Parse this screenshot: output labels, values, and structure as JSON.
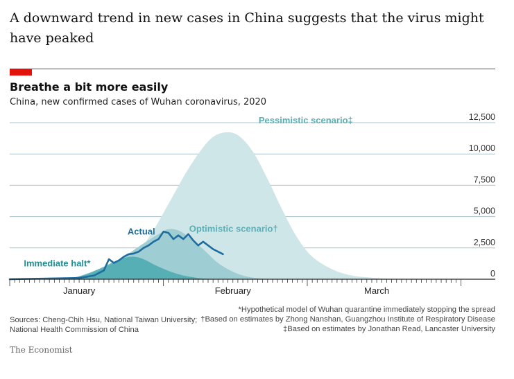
{
  "article": {
    "headline": "A downward trend in new cases in China suggests that the virus might have peaked"
  },
  "chart_data": {
    "type": "area",
    "title": "Breathe a bit more easily",
    "subtitle": "China, new confirmed cases of Wuhan coronavirus, 2020",
    "xlabel": "",
    "ylabel": "",
    "ylim": [
      0,
      12500
    ],
    "y_ticks": [
      {
        "value": 0,
        "label": "0"
      },
      {
        "value": 2500,
        "label": "2,500"
      },
      {
        "value": 5000,
        "label": "5,000"
      },
      {
        "value": 7500,
        "label": "7,500"
      },
      {
        "value": 10000,
        "label": "10,000"
      },
      {
        "value": 12500,
        "label": "12,500"
      }
    ],
    "x_axis": {
      "start": "2020-01-01",
      "end": "2020-03-31",
      "month_labels": [
        {
          "label": "January",
          "date": "2020-01-15"
        },
        {
          "label": "February",
          "date": "2020-02-15"
        },
        {
          "label": "March",
          "date": "2020-03-15"
        }
      ]
    },
    "grid": true,
    "colors": {
      "pessimistic": "#cfe6e8",
      "optimistic": "#9ecdd3",
      "immediate": "#4aa9b0",
      "actual": "#1e6d9e",
      "grid": "#a9c3cc",
      "accent": "#e3120b"
    },
    "series": [
      {
        "name": "Pessimistic scenario‡",
        "kind": "area",
        "x": [
          "2020-01-01",
          "2020-01-10",
          "2020-01-15",
          "2020-01-20",
          "2020-01-25",
          "2020-01-29",
          "2020-02-02",
          "2020-02-06",
          "2020-02-10",
          "2020-02-13",
          "2020-02-16",
          "2020-02-19",
          "2020-02-22",
          "2020-02-25",
          "2020-02-28",
          "2020-03-02",
          "2020-03-06",
          "2020-03-10",
          "2020-03-15",
          "2020-03-20"
        ],
        "y": [
          0,
          0,
          100,
          500,
          1500,
          3300,
          6000,
          8800,
          11000,
          11700,
          11500,
          10200,
          8000,
          5500,
          3300,
          1800,
          800,
          300,
          100,
          0
        ]
      },
      {
        "name": "Optimistic scenario†",
        "kind": "area",
        "x": [
          "2020-01-01",
          "2020-01-10",
          "2020-01-15",
          "2020-01-19",
          "2020-01-23",
          "2020-01-27",
          "2020-01-31",
          "2020-02-02",
          "2020-02-04",
          "2020-02-06",
          "2020-02-09",
          "2020-02-12",
          "2020-02-15",
          "2020-02-18",
          "2020-02-21",
          "2020-02-25"
        ],
        "y": [
          0,
          0,
          200,
          700,
          1500,
          2600,
          3600,
          4000,
          3900,
          3400,
          2400,
          1300,
          600,
          200,
          50,
          0
        ]
      },
      {
        "name": "Immediate halt*",
        "kind": "area",
        "x": [
          "2020-01-01",
          "2020-01-10",
          "2020-01-14",
          "2020-01-17",
          "2020-01-20",
          "2020-01-22",
          "2020-01-24",
          "2020-01-26",
          "2020-01-28",
          "2020-01-31",
          "2020-02-04",
          "2020-02-08",
          "2020-02-12"
        ],
        "y": [
          0,
          0,
          150,
          500,
          1000,
          1400,
          1700,
          1800,
          1600,
          1000,
          400,
          100,
          0
        ]
      },
      {
        "name": "Actual",
        "kind": "line",
        "x": [
          "2020-01-01",
          "2020-01-15",
          "2020-01-18",
          "2020-01-20",
          "2020-01-21",
          "2020-01-22",
          "2020-01-23",
          "2020-01-24",
          "2020-01-25",
          "2020-01-26",
          "2020-01-27",
          "2020-01-28",
          "2020-01-29",
          "2020-01-30",
          "2020-01-31",
          "2020-02-01",
          "2020-02-02",
          "2020-02-03",
          "2020-02-04",
          "2020-02-05",
          "2020-02-06",
          "2020-02-07",
          "2020-02-08",
          "2020-02-09",
          "2020-02-10",
          "2020-02-11",
          "2020-02-12",
          "2020-02-13"
        ],
        "y": [
          0,
          100,
          300,
          700,
          1600,
          1300,
          1500,
          1800,
          2000,
          2050,
          2200,
          2500,
          2700,
          3000,
          3200,
          3800,
          3700,
          3200,
          3500,
          3200,
          3600,
          3100,
          2700,
          3000,
          2700,
          2400,
          2200,
          2000
        ]
      }
    ],
    "labels": [
      {
        "text": "Pessimistic scenario‡",
        "series": "Pessimistic scenario‡"
      },
      {
        "text": "Optimistic scenario†",
        "series": "Optimistic scenario†"
      },
      {
        "text": "Immediate halt*",
        "series": "Immediate halt*"
      },
      {
        "text": "Actual",
        "series": "Actual"
      }
    ]
  },
  "notes": [
    "*Hypothetical model of Wuhan quarantine immediately stopping the spread",
    "†Based on estimates by Zhong Nanshan, Guangzhou Institute of Respiratory Disease",
    "‡Based on estimates by Jonathan Read, Lancaster University"
  ],
  "sources": "Sources: Cheng-Chih Hsu, National Taiwan University; National Health Commission of China",
  "brand": "The Economist"
}
